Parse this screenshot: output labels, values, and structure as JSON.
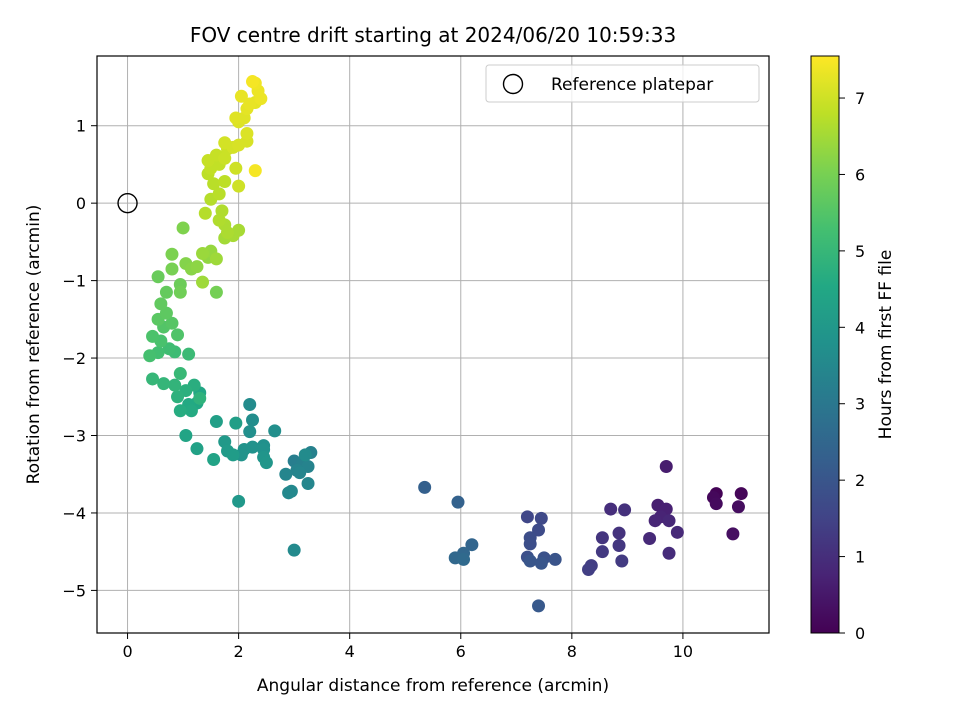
{
  "chart_data": {
    "type": "scatter",
    "title": "FOV centre drift starting at 2024/06/20 10:59:33",
    "xlabel": "Angular distance from reference (arcmin)",
    "ylabel": "Rotation from reference (arcmin)",
    "xlim": [
      -0.55,
      11.55
    ],
    "ylim": [
      -5.55,
      1.9
    ],
    "xticks": [
      0,
      2,
      4,
      6,
      8,
      10
    ],
    "yticks": [
      -5,
      -4,
      -3,
      -2,
      -1,
      0,
      1
    ],
    "xtick_labels": [
      "0",
      "2",
      "4",
      "6",
      "8",
      "10"
    ],
    "ytick_labels": [
      "−5",
      "−4",
      "−3",
      "−2",
      "−1",
      "0",
      "1"
    ],
    "grid": true,
    "legend": {
      "placement": "top-right",
      "label": "Reference platepar"
    },
    "reference_point": {
      "x": 0,
      "y": 0
    },
    "colorbar": {
      "label": "Hours from first FF file",
      "range": [
        0,
        7.55
      ],
      "ticks": [
        0,
        1,
        2,
        3,
        4,
        5,
        6,
        7
      ],
      "tick_labels": [
        "0",
        "1",
        "2",
        "3",
        "4",
        "5",
        "6",
        "7"
      ],
      "colormap": [
        "#440154",
        "#482475",
        "#414487",
        "#355f8d",
        "#2a788e",
        "#21918c",
        "#22a884",
        "#44bf70",
        "#7ad151",
        "#bddf26",
        "#fde725"
      ]
    },
    "points": [
      {
        "x": 10.6,
        "y": -3.75,
        "t": 0.05
      },
      {
        "x": 11.05,
        "y": -3.75,
        "t": 0.1
      },
      {
        "x": 10.55,
        "y": -3.8,
        "t": 0.15
      },
      {
        "x": 10.6,
        "y": -3.88,
        "t": 0.2
      },
      {
        "x": 11.0,
        "y": -3.92,
        "t": 0.25
      },
      {
        "x": 10.9,
        "y": -4.27,
        "t": 0.3
      },
      {
        "x": 9.7,
        "y": -3.4,
        "t": 0.6
      },
      {
        "x": 9.55,
        "y": -3.9,
        "t": 0.65
      },
      {
        "x": 9.7,
        "y": -3.95,
        "t": 0.7
      },
      {
        "x": 9.6,
        "y": -4.05,
        "t": 0.75
      },
      {
        "x": 9.5,
        "y": -4.1,
        "t": 0.8
      },
      {
        "x": 9.75,
        "y": -4.1,
        "t": 0.85
      },
      {
        "x": 9.9,
        "y": -4.25,
        "t": 0.9
      },
      {
        "x": 9.4,
        "y": -4.33,
        "t": 0.9
      },
      {
        "x": 9.75,
        "y": -4.52,
        "t": 0.95
      },
      {
        "x": 8.7,
        "y": -3.95,
        "t": 1.0
      },
      {
        "x": 8.95,
        "y": -3.96,
        "t": 1.05
      },
      {
        "x": 8.85,
        "y": -4.26,
        "t": 1.1
      },
      {
        "x": 8.55,
        "y": -4.32,
        "t": 1.15
      },
      {
        "x": 8.85,
        "y": -4.42,
        "t": 1.2
      },
      {
        "x": 8.55,
        "y": -4.5,
        "t": 1.25
      },
      {
        "x": 8.9,
        "y": -4.62,
        "t": 1.3
      },
      {
        "x": 8.35,
        "y": -4.68,
        "t": 1.35
      },
      {
        "x": 8.3,
        "y": -4.73,
        "t": 1.4
      },
      {
        "x": 7.2,
        "y": -4.05,
        "t": 1.6
      },
      {
        "x": 7.45,
        "y": -4.07,
        "t": 1.65
      },
      {
        "x": 7.4,
        "y": -4.22,
        "t": 1.7
      },
      {
        "x": 7.25,
        "y": -4.32,
        "t": 1.75
      },
      {
        "x": 7.25,
        "y": -4.4,
        "t": 1.8
      },
      {
        "x": 7.2,
        "y": -4.57,
        "t": 1.85
      },
      {
        "x": 7.5,
        "y": -4.58,
        "t": 1.9
      },
      {
        "x": 7.7,
        "y": -4.6,
        "t": 1.95
      },
      {
        "x": 7.25,
        "y": -4.62,
        "t": 2.0
      },
      {
        "x": 7.45,
        "y": -4.65,
        "t": 2.0
      },
      {
        "x": 7.4,
        "y": -5.2,
        "t": 2.1
      },
      {
        "x": 5.35,
        "y": -3.67,
        "t": 2.3
      },
      {
        "x": 5.95,
        "y": -3.86,
        "t": 2.35
      },
      {
        "x": 6.2,
        "y": -4.41,
        "t": 2.45
      },
      {
        "x": 6.05,
        "y": -4.52,
        "t": 2.5
      },
      {
        "x": 5.9,
        "y": -4.58,
        "t": 2.55
      },
      {
        "x": 6.05,
        "y": -4.6,
        "t": 2.6
      },
      {
        "x": 3.0,
        "y": -3.33,
        "t": 3.2
      },
      {
        "x": 3.15,
        "y": -3.35,
        "t": 3.25
      },
      {
        "x": 3.3,
        "y": -3.22,
        "t": 3.3
      },
      {
        "x": 3.25,
        "y": -3.4,
        "t": 3.35
      },
      {
        "x": 3.05,
        "y": -3.45,
        "t": 3.35
      },
      {
        "x": 2.85,
        "y": -3.5,
        "t": 3.4
      },
      {
        "x": 3.1,
        "y": -3.48,
        "t": 3.4
      },
      {
        "x": 3.25,
        "y": -3.62,
        "t": 3.45
      },
      {
        "x": 2.95,
        "y": -3.72,
        "t": 3.5
      },
      {
        "x": 2.9,
        "y": -3.74,
        "t": 3.5
      },
      {
        "x": 3.0,
        "y": -4.48,
        "t": 3.55
      },
      {
        "x": 3.2,
        "y": -3.25,
        "t": 3.6
      },
      {
        "x": 2.2,
        "y": -2.6,
        "t": 3.6
      },
      {
        "x": 2.25,
        "y": -2.8,
        "t": 3.65
      },
      {
        "x": 2.2,
        "y": -2.95,
        "t": 3.7
      },
      {
        "x": 2.65,
        "y": -2.94,
        "t": 3.7
      },
      {
        "x": 2.45,
        "y": -3.13,
        "t": 3.75
      },
      {
        "x": 2.45,
        "y": -3.18,
        "t": 3.8
      },
      {
        "x": 2.25,
        "y": -3.15,
        "t": 3.8
      },
      {
        "x": 2.1,
        "y": -3.18,
        "t": 3.85
      },
      {
        "x": 2.05,
        "y": -3.25,
        "t": 3.85
      },
      {
        "x": 2.45,
        "y": -3.28,
        "t": 3.9
      },
      {
        "x": 2.5,
        "y": -3.35,
        "t": 3.95
      },
      {
        "x": 2.0,
        "y": -3.85,
        "t": 4.0
      },
      {
        "x": 1.75,
        "y": -3.08,
        "t": 4.05
      },
      {
        "x": 1.8,
        "y": -3.2,
        "t": 4.1
      },
      {
        "x": 1.9,
        "y": -3.25,
        "t": 4.15
      },
      {
        "x": 1.95,
        "y": -2.84,
        "t": 4.2
      },
      {
        "x": 1.6,
        "y": -2.82,
        "t": 4.25
      },
      {
        "x": 1.25,
        "y": -3.17,
        "t": 4.3
      },
      {
        "x": 1.55,
        "y": -3.31,
        "t": 4.35
      },
      {
        "x": 1.05,
        "y": -3.0,
        "t": 4.4
      },
      {
        "x": 1.3,
        "y": -2.45,
        "t": 4.45
      },
      {
        "x": 1.25,
        "y": -2.58,
        "t": 4.5
      },
      {
        "x": 1.1,
        "y": -2.6,
        "t": 4.55
      },
      {
        "x": 1.15,
        "y": -2.68,
        "t": 4.6
      },
      {
        "x": 0.95,
        "y": -2.68,
        "t": 4.65
      },
      {
        "x": 1.2,
        "y": -2.35,
        "t": 4.7
      },
      {
        "x": 1.05,
        "y": -2.42,
        "t": 4.75
      },
      {
        "x": 0.9,
        "y": -2.5,
        "t": 4.8
      },
      {
        "x": 1.3,
        "y": -2.52,
        "t": 4.85
      },
      {
        "x": 0.85,
        "y": -2.35,
        "t": 4.9
      },
      {
        "x": 0.65,
        "y": -2.33,
        "t": 4.95
      },
      {
        "x": 0.45,
        "y": -2.27,
        "t": 5.0
      },
      {
        "x": 0.95,
        "y": -2.2,
        "t": 5.05
      },
      {
        "x": 1.1,
        "y": -1.95,
        "t": 5.1
      },
      {
        "x": 0.85,
        "y": -1.92,
        "t": 5.15
      },
      {
        "x": 0.75,
        "y": -1.88,
        "t": 5.2
      },
      {
        "x": 0.55,
        "y": -1.93,
        "t": 5.25
      },
      {
        "x": 0.4,
        "y": -1.97,
        "t": 5.3
      },
      {
        "x": 0.6,
        "y": -1.78,
        "t": 5.35
      },
      {
        "x": 0.45,
        "y": -1.72,
        "t": 5.4
      },
      {
        "x": 0.9,
        "y": -1.7,
        "t": 5.45
      },
      {
        "x": 0.65,
        "y": -1.6,
        "t": 5.5
      },
      {
        "x": 0.8,
        "y": -1.55,
        "t": 5.55
      },
      {
        "x": 0.55,
        "y": -1.5,
        "t": 5.6
      },
      {
        "x": 0.7,
        "y": -1.42,
        "t": 5.65
      },
      {
        "x": 0.6,
        "y": -1.3,
        "t": 5.7
      },
      {
        "x": 0.7,
        "y": -1.15,
        "t": 5.75
      },
      {
        "x": 0.55,
        "y": -0.95,
        "t": 5.8
      },
      {
        "x": 0.95,
        "y": -1.05,
        "t": 5.85
      },
      {
        "x": 0.95,
        "y": -1.15,
        "t": 5.9
      },
      {
        "x": 1.6,
        "y": -1.15,
        "t": 5.95
      },
      {
        "x": 0.8,
        "y": -0.85,
        "t": 6.0
      },
      {
        "x": 0.8,
        "y": -0.66,
        "t": 6.05
      },
      {
        "x": 1.0,
        "y": -0.32,
        "t": 6.1
      },
      {
        "x": 1.05,
        "y": -0.78,
        "t": 6.15
      },
      {
        "x": 1.15,
        "y": -0.85,
        "t": 6.2
      },
      {
        "x": 1.25,
        "y": -0.82,
        "t": 6.25
      },
      {
        "x": 1.45,
        "y": -0.7,
        "t": 6.3
      },
      {
        "x": 1.5,
        "y": -0.62,
        "t": 6.35
      },
      {
        "x": 1.35,
        "y": -0.65,
        "t": 6.4
      },
      {
        "x": 1.6,
        "y": -0.72,
        "t": 6.45
      },
      {
        "x": 1.35,
        "y": -1.02,
        "t": 6.45
      },
      {
        "x": 1.75,
        "y": -0.45,
        "t": 6.5
      },
      {
        "x": 1.9,
        "y": -0.42,
        "t": 6.55
      },
      {
        "x": 2.0,
        "y": -0.35,
        "t": 6.55
      },
      {
        "x": 1.8,
        "y": -0.38,
        "t": 6.6
      },
      {
        "x": 1.75,
        "y": -0.28,
        "t": 6.6
      },
      {
        "x": 1.65,
        "y": -0.22,
        "t": 6.65
      },
      {
        "x": 1.7,
        "y": -0.1,
        "t": 6.65
      },
      {
        "x": 1.4,
        "y": -0.13,
        "t": 6.7
      },
      {
        "x": 1.5,
        "y": 0.05,
        "t": 6.7
      },
      {
        "x": 1.65,
        "y": 0.12,
        "t": 6.75
      },
      {
        "x": 1.55,
        "y": 0.25,
        "t": 6.75
      },
      {
        "x": 1.75,
        "y": 0.28,
        "t": 6.8
      },
      {
        "x": 1.45,
        "y": 0.38,
        "t": 6.8
      },
      {
        "x": 1.5,
        "y": 0.45,
        "t": 6.85
      },
      {
        "x": 1.65,
        "y": 0.5,
        "t": 6.85
      },
      {
        "x": 1.45,
        "y": 0.55,
        "t": 6.9
      },
      {
        "x": 1.6,
        "y": 0.62,
        "t": 6.9
      },
      {
        "x": 1.75,
        "y": 0.58,
        "t": 6.95
      },
      {
        "x": 1.8,
        "y": 0.7,
        "t": 6.95
      },
      {
        "x": 1.95,
        "y": 0.45,
        "t": 7.0
      },
      {
        "x": 2.0,
        "y": 0.22,
        "t": 7.0
      },
      {
        "x": 1.75,
        "y": 0.78,
        "t": 7.05
      },
      {
        "x": 1.9,
        "y": 0.72,
        "t": 7.05
      },
      {
        "x": 2.0,
        "y": 0.75,
        "t": 7.1
      },
      {
        "x": 2.15,
        "y": 0.8,
        "t": 7.1
      },
      {
        "x": 2.15,
        "y": 0.9,
        "t": 7.15
      },
      {
        "x": 2.0,
        "y": 1.05,
        "t": 7.15
      },
      {
        "x": 1.95,
        "y": 1.1,
        "t": 7.2
      },
      {
        "x": 2.1,
        "y": 1.1,
        "t": 7.2
      },
      {
        "x": 2.15,
        "y": 1.22,
        "t": 7.25
      },
      {
        "x": 2.3,
        "y": 1.3,
        "t": 7.25
      },
      {
        "x": 2.2,
        "y": 1.28,
        "t": 7.3
      },
      {
        "x": 2.05,
        "y": 1.38,
        "t": 7.3
      },
      {
        "x": 2.4,
        "y": 1.35,
        "t": 7.35
      },
      {
        "x": 2.35,
        "y": 1.45,
        "t": 7.35
      },
      {
        "x": 2.3,
        "y": 1.55,
        "t": 7.4
      },
      {
        "x": 2.25,
        "y": 1.57,
        "t": 7.45
      },
      {
        "x": 2.3,
        "y": 0.42,
        "t": 7.45
      }
    ]
  }
}
